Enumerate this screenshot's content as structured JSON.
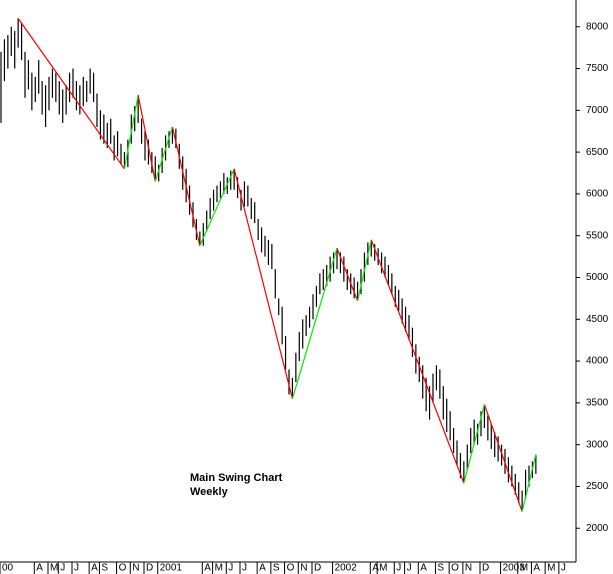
{
  "chart_data": {
    "type": "ohlc",
    "annotation": [
      "Main Swing Chart",
      "Weekly"
    ],
    "bar_color": "#000000",
    "high": [
      7700,
      7850,
      7900,
      8000,
      7950,
      8100,
      8050,
      7700,
      7600,
      7450,
      7400,
      7600,
      7350,
      7300,
      7400,
      7500,
      7450,
      7350,
      7250,
      7300,
      7450,
      7500,
      7350,
      7300,
      7400,
      7350,
      7500,
      7450,
      7200,
      7000,
      6950,
      6850,
      6900,
      6700,
      6750,
      6600,
      6500,
      6650,
      6950,
      7050,
      7180,
      6900,
      6750,
      6650,
      6500,
      6450,
      6350,
      6550,
      6700,
      6750,
      6800,
      6780,
      6600,
      6450,
      6300,
      6100,
      5900,
      5700,
      5550,
      5650,
      5800,
      5950,
      6050,
      6100,
      6150,
      6250,
      6200,
      6280,
      6300,
      6200,
      6050,
      6150,
      6100,
      5950,
      5900,
      5700,
      5600,
      5500,
      5450,
      5400,
      5100,
      4750,
      4650,
      4300,
      3900,
      3800,
      4100,
      4350,
      4500,
      4550,
      4650,
      4800,
      4900,
      5050,
      5100,
      5150,
      5250,
      5300,
      5350,
      5300,
      5250,
      5100,
      5050,
      5000,
      4950,
      5100,
      5300,
      5420,
      5450,
      5400,
      5350,
      5300,
      5250,
      5150,
      5050,
      4900,
      4850,
      4750,
      4650,
      4550,
      4400,
      4200,
      4050,
      3950,
      3800,
      3700,
      3850,
      3950,
      3900,
      3700,
      3550,
      3400,
      3200,
      3050,
      2900,
      2800,
      3000,
      3200,
      3300,
      3250,
      3400,
      3480,
      3350,
      3250,
      3150,
      3100,
      3000,
      2950,
      2850,
      2750,
      2650,
      2550,
      2450,
      2700,
      2750,
      2800,
      2880
    ],
    "low": [
      6850,
      7350,
      7500,
      7650,
      7500,
      7750,
      7600,
      7150,
      7250,
      7000,
      7100,
      7200,
      6950,
      6800,
      7000,
      7150,
      7100,
      6950,
      6850,
      6950,
      7100,
      7150,
      7000,
      6950,
      7050,
      7100,
      7200,
      7100,
      6800,
      6650,
      6600,
      6550,
      6600,
      6400,
      6450,
      6350,
      6300,
      6320,
      6600,
      6750,
      6850,
      6600,
      6400,
      6350,
      6250,
      6150,
      6150,
      6250,
      6400,
      6550,
      6600,
      6550,
      6300,
      6050,
      5900,
      5750,
      5600,
      5450,
      5380,
      5380,
      5550,
      5700,
      5800,
      5900,
      5950,
      6000,
      6000,
      6050,
      6050,
      5950,
      5800,
      5850,
      5850,
      5700,
      5650,
      5450,
      5300,
      5250,
      5150,
      5100,
      4750,
      4550,
      4200,
      3900,
      3600,
      3550,
      3750,
      4000,
      4150,
      4300,
      4400,
      4500,
      4650,
      4800,
      4850,
      4900,
      4950,
      5050,
      5100,
      5050,
      4950,
      4850,
      4800,
      4750,
      4720,
      4800,
      4950,
      5150,
      5250,
      5200,
      5150,
      5050,
      5000,
      4900,
      4800,
      4650,
      4600,
      4450,
      4350,
      4250,
      4050,
      3850,
      3750,
      3550,
      3400,
      3300,
      3500,
      3650,
      3550,
      3300,
      3150,
      3050,
      2900,
      2750,
      2600,
      2540,
      2700,
      2900,
      3000,
      3000,
      3100,
      3200,
      3050,
      2950,
      2850,
      2800,
      2750,
      2650,
      2550,
      2500,
      2400,
      2300,
      2200,
      2350,
      2500,
      2600,
      2650
    ],
    "swing_x": [
      5,
      36,
      40,
      45,
      50,
      58,
      68,
      85,
      98,
      104,
      108,
      135,
      141,
      152,
      156
    ],
    "swing_values": [
      8100,
      6300,
      7180,
      6150,
      6800,
      5380,
      6300,
      3550,
      5350,
      4720,
      5450,
      2540,
      3480,
      2200,
      2880
    ],
    "up_color": "#00ee00",
    "down_color": "#ff0000",
    "xlim": [
      0,
      168
    ],
    "xticks": [
      {
        "value": 0,
        "label": "00"
      },
      {
        "value": 10,
        "label": "A"
      },
      {
        "value": 14,
        "label": "M"
      },
      {
        "value": 17,
        "label": "J"
      },
      {
        "value": 21,
        "label": "J"
      },
      {
        "value": 26,
        "label": "A"
      },
      {
        "value": 29,
        "label": "S"
      },
      {
        "value": 34,
        "label": "O"
      },
      {
        "value": 38,
        "label": "N"
      },
      {
        "value": 42,
        "label": "D"
      },
      {
        "value": 46,
        "label": "2001"
      },
      {
        "value": 59,
        "label": "A"
      },
      {
        "value": 62,
        "label": "M"
      },
      {
        "value": 66,
        "label": "J"
      },
      {
        "value": 70,
        "label": "J"
      },
      {
        "value": 75,
        "label": "A"
      },
      {
        "value": 79,
        "label": "S"
      },
      {
        "value": 83,
        "label": "O"
      },
      {
        "value": 87,
        "label": "N"
      },
      {
        "value": 91,
        "label": "D"
      },
      {
        "value": 97,
        "label": "2002"
      },
      {
        "value": 108,
        "label": "A"
      },
      {
        "value": 110,
        "label": "M"
      },
      {
        "value": 115,
        "label": "J"
      },
      {
        "value": 118,
        "label": "J"
      },
      {
        "value": 122,
        "label": "A"
      },
      {
        "value": 127,
        "label": "S"
      },
      {
        "value": 131,
        "label": "O"
      },
      {
        "value": 135,
        "label": "N"
      },
      {
        "value": 140,
        "label": "D"
      },
      {
        "value": 146,
        "label": "2003"
      },
      {
        "value": 151,
        "label": "M"
      },
      {
        "value": 155,
        "label": "A"
      },
      {
        "value": 159,
        "label": "M"
      },
      {
        "value": 163,
        "label": "J"
      }
    ],
    "ylim": [
      1620,
      8320
    ],
    "yticks": [
      2000,
      2500,
      3000,
      3500,
      4000,
      4500,
      5000,
      5500,
      6000,
      6500,
      7000,
      7500,
      8000
    ]
  }
}
